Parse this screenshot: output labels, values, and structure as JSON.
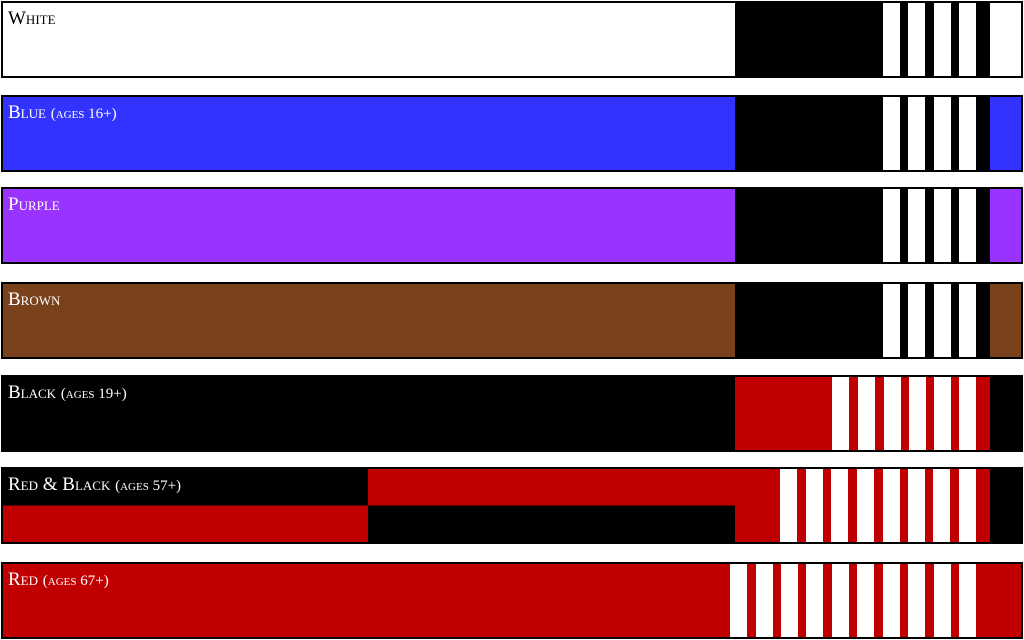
{
  "belts": [
    {
      "name": "White"
    },
    {
      "name": "Blue",
      "note": "(ages 16+)"
    },
    {
      "name": "Purple"
    },
    {
      "name": "Brown"
    },
    {
      "name": "Black",
      "note": "(ages 19+)"
    },
    {
      "name": "Red & Black",
      "note": "(ages 57+)"
    },
    {
      "name": "Red",
      "note": "(ages 67+)"
    }
  ]
}
